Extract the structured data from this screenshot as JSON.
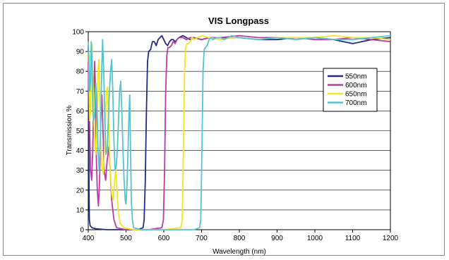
{
  "chart_data": {
    "type": "line",
    "title": "VIS Longpass",
    "xlabel": "Wavelength (nm)",
    "ylabel": "Transmission %",
    "xlim": [
      400,
      1200
    ],
    "ylim": [
      0,
      100
    ],
    "x_ticks": [
      "400",
      "500",
      "600",
      "700",
      "800",
      "900",
      "1000",
      "1100",
      "1200"
    ],
    "y_ticks": [
      "0",
      "10",
      "20",
      "30",
      "40",
      "50",
      "60",
      "70",
      "80",
      "90",
      "100"
    ],
    "grid": "horizontal",
    "legend_position": "right",
    "series": [
      {
        "name": "550nm",
        "color": "#262a82",
        "points": [
          [
            400,
            93
          ],
          [
            401,
            70
          ],
          [
            402,
            20
          ],
          [
            403,
            5
          ],
          [
            405,
            2
          ],
          [
            410,
            1
          ],
          [
            420,
            0.5
          ],
          [
            450,
            0
          ],
          [
            500,
            0
          ],
          [
            530,
            0
          ],
          [
            545,
            1
          ],
          [
            548,
            5
          ],
          [
            551,
            25
          ],
          [
            554,
            60
          ],
          [
            557,
            85
          ],
          [
            560,
            90
          ],
          [
            565,
            91
          ],
          [
            570,
            95
          ],
          [
            575,
            95
          ],
          [
            580,
            93
          ],
          [
            585,
            96
          ],
          [
            590,
            97
          ],
          [
            595,
            98
          ],
          [
            600,
            96
          ],
          [
            605,
            94
          ],
          [
            610,
            93
          ],
          [
            615,
            95
          ],
          [
            620,
            96
          ],
          [
            625,
            96
          ],
          [
            630,
            95
          ],
          [
            640,
            97
          ],
          [
            650,
            98
          ],
          [
            660,
            97
          ],
          [
            670,
            96
          ],
          [
            680,
            97
          ],
          [
            700,
            96
          ],
          [
            720,
            97
          ],
          [
            750,
            97
          ],
          [
            800,
            97
          ],
          [
            850,
            96
          ],
          [
            900,
            96
          ],
          [
            950,
            97
          ],
          [
            1000,
            97
          ],
          [
            1050,
            96
          ],
          [
            1100,
            94
          ],
          [
            1150,
            96
          ],
          [
            1200,
            97
          ]
        ]
      },
      {
        "name": "600nm",
        "color": "#b93ca3",
        "points": [
          [
            400,
            85
          ],
          [
            403,
            60
          ],
          [
            406,
            30
          ],
          [
            409,
            25
          ],
          [
            412,
            40
          ],
          [
            415,
            70
          ],
          [
            417,
            85
          ],
          [
            419,
            70
          ],
          [
            421,
            40
          ],
          [
            424,
            20
          ],
          [
            427,
            12
          ],
          [
            430,
            25
          ],
          [
            433,
            55
          ],
          [
            436,
            68
          ],
          [
            439,
            50
          ],
          [
            442,
            30
          ],
          [
            446,
            25
          ],
          [
            450,
            35
          ],
          [
            455,
            42
          ],
          [
            458,
            30
          ],
          [
            462,
            15
          ],
          [
            468,
            5
          ],
          [
            475,
            1
          ],
          [
            500,
            0
          ],
          [
            560,
            0
          ],
          [
            595,
            1
          ],
          [
            599,
            5
          ],
          [
            602,
            30
          ],
          [
            605,
            70
          ],
          [
            608,
            88
          ],
          [
            611,
            92
          ],
          [
            615,
            92
          ],
          [
            620,
            93
          ],
          [
            625,
            95
          ],
          [
            630,
            94
          ],
          [
            635,
            96
          ],
          [
            640,
            97
          ],
          [
            650,
            97
          ],
          [
            660,
            96
          ],
          [
            670,
            97
          ],
          [
            680,
            97
          ],
          [
            700,
            96
          ],
          [
            720,
            97
          ],
          [
            750,
            97
          ],
          [
            800,
            98
          ],
          [
            850,
            97
          ],
          [
            900,
            97
          ],
          [
            950,
            97
          ],
          [
            1000,
            96
          ],
          [
            1050,
            96
          ],
          [
            1100,
            97
          ],
          [
            1150,
            96
          ],
          [
            1200,
            95
          ]
        ]
      },
      {
        "name": "650nm",
        "color": "#f0e623",
        "points": [
          [
            400,
            90
          ],
          [
            402,
            80
          ],
          [
            404,
            55
          ],
          [
            406,
            60
          ],
          [
            408,
            88
          ],
          [
            410,
            94
          ],
          [
            412,
            80
          ],
          [
            415,
            55
          ],
          [
            418,
            42
          ],
          [
            420,
            38
          ],
          [
            423,
            55
          ],
          [
            426,
            80
          ],
          [
            428,
            86
          ],
          [
            430,
            70
          ],
          [
            433,
            45
          ],
          [
            436,
            32
          ],
          [
            440,
            28
          ],
          [
            444,
            45
          ],
          [
            448,
            70
          ],
          [
            451,
            72
          ],
          [
            454,
            55
          ],
          [
            458,
            30
          ],
          [
            462,
            18
          ],
          [
            466,
            15
          ],
          [
            470,
            25
          ],
          [
            473,
            30
          ],
          [
            476,
            20
          ],
          [
            480,
            8
          ],
          [
            485,
            3
          ],
          [
            495,
            1
          ],
          [
            520,
            0
          ],
          [
            600,
            0
          ],
          [
            645,
            1
          ],
          [
            649,
            5
          ],
          [
            652,
            40
          ],
          [
            655,
            80
          ],
          [
            658,
            92
          ],
          [
            661,
            94
          ],
          [
            665,
            94
          ],
          [
            670,
            95
          ],
          [
            675,
            97
          ],
          [
            680,
            96
          ],
          [
            690,
            97
          ],
          [
            700,
            98
          ],
          [
            720,
            97
          ],
          [
            750,
            96
          ],
          [
            780,
            97
          ],
          [
            800,
            97
          ],
          [
            850,
            96
          ],
          [
            900,
            97
          ],
          [
            950,
            97
          ],
          [
            1000,
            97
          ],
          [
            1050,
            98
          ],
          [
            1100,
            97
          ],
          [
            1150,
            97
          ],
          [
            1200,
            96
          ]
        ]
      },
      {
        "name": "700nm",
        "color": "#56c4cf",
        "points": [
          [
            400,
            95
          ],
          [
            402,
            85
          ],
          [
            404,
            70
          ],
          [
            406,
            75
          ],
          [
            408,
            95
          ],
          [
            410,
            85
          ],
          [
            412,
            62
          ],
          [
            414,
            55
          ],
          [
            417,
            58
          ],
          [
            420,
            74
          ],
          [
            423,
            65
          ],
          [
            426,
            40
          ],
          [
            429,
            30
          ],
          [
            432,
            45
          ],
          [
            435,
            75
          ],
          [
            438,
            96
          ],
          [
            441,
            80
          ],
          [
            444,
            55
          ],
          [
            447,
            38
          ],
          [
            450,
            40
          ],
          [
            453,
            55
          ],
          [
            456,
            70
          ],
          [
            459,
            80
          ],
          [
            462,
            86
          ],
          [
            465,
            70
          ],
          [
            468,
            45
          ],
          [
            471,
            30
          ],
          [
            474,
            32
          ],
          [
            477,
            40
          ],
          [
            480,
            55
          ],
          [
            483,
            70
          ],
          [
            486,
            75
          ],
          [
            489,
            60
          ],
          [
            492,
            40
          ],
          [
            495,
            25
          ],
          [
            498,
            15
          ],
          [
            500,
            13
          ],
          [
            503,
            25
          ],
          [
            506,
            45
          ],
          [
            508,
            60
          ],
          [
            510,
            68
          ],
          [
            512,
            40
          ],
          [
            514,
            15
          ],
          [
            517,
            5
          ],
          [
            520,
            1
          ],
          [
            540,
            0
          ],
          [
            600,
            0
          ],
          [
            680,
            0
          ],
          [
            695,
            1
          ],
          [
            698,
            5
          ],
          [
            701,
            40
          ],
          [
            704,
            80
          ],
          [
            707,
            91
          ],
          [
            710,
            92
          ],
          [
            715,
            93
          ],
          [
            720,
            96
          ],
          [
            725,
            97
          ],
          [
            730,
            96
          ],
          [
            740,
            97
          ],
          [
            750,
            97
          ],
          [
            760,
            96
          ],
          [
            780,
            98
          ],
          [
            800,
            97
          ],
          [
            850,
            96
          ],
          [
            900,
            97
          ],
          [
            950,
            96
          ],
          [
            1000,
            97
          ],
          [
            1050,
            96
          ],
          [
            1100,
            96
          ],
          [
            1150,
            97
          ],
          [
            1200,
            98
          ]
        ]
      }
    ]
  }
}
